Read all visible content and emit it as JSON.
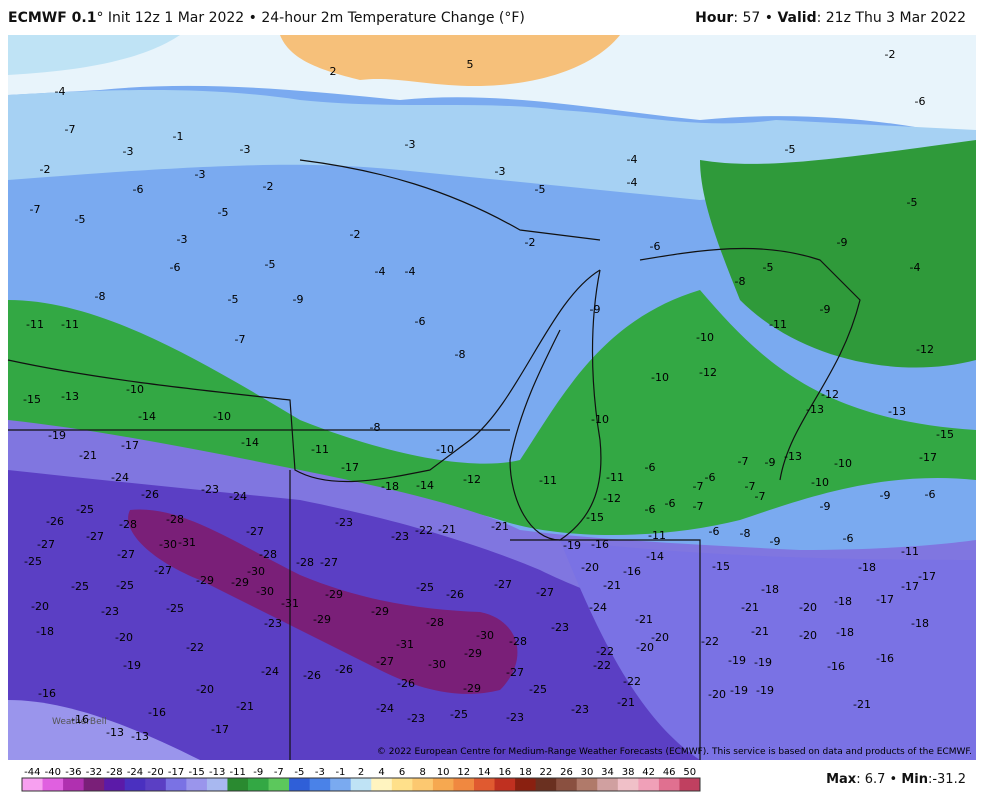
{
  "header": {
    "model": "ECMWF 0.1",
    "title": "° Init 12z 1 Mar 2022 • 24-hour 2m Temperature Change (°F)",
    "hour_label": "Hour",
    "hour_value": ": 57 • ",
    "valid_label": "Valid",
    "valid_value": ": 21z Thu 3 Mar 2022"
  },
  "footer": {
    "copyright": "© 2022 European Centre for Medium-Range Weather Forecasts (ECMWF). This service is based on data and products of the ECMWF.",
    "max_label": "Max",
    "max_value": ": 6.7 • ",
    "min_label": "Min",
    "min_value": ":-31.2",
    "watermark": "WeatherBell"
  },
  "colorbar": {
    "labels": [
      -44,
      -40,
      -36,
      -32,
      -28,
      -24,
      -20,
      -17,
      -15,
      -13,
      -11,
      -9,
      -7,
      -5,
      -3,
      -1,
      2,
      4,
      6,
      8,
      10,
      12,
      14,
      16,
      18,
      22,
      26,
      30,
      34,
      38,
      42,
      46,
      50
    ]
  },
  "map_values": [
    5,
    2,
    -2,
    -4,
    -6,
    -7,
    -1,
    -3,
    -3,
    -3,
    -3,
    -4,
    -5,
    -2,
    -3,
    -2,
    -6,
    -5,
    -4,
    -7,
    -5,
    -5,
    -5,
    -3,
    -2,
    -2,
    -6,
    -9,
    -6,
    -5,
    -4,
    -4,
    -5,
    -4,
    -8,
    -5,
    -9,
    -9,
    -8,
    -9,
    -11,
    -11,
    -7,
    -6,
    -10,
    -11,
    -12,
    -10,
    -8,
    -10,
    -12,
    -12,
    -15,
    -13,
    -14,
    -10,
    -8,
    -10,
    -13,
    -13,
    -19,
    -17,
    -14,
    -11,
    -10,
    -13,
    -15,
    -21,
    -24,
    -26,
    -23,
    -24,
    -17,
    -18,
    -14,
    -12,
    -11,
    -7,
    -25,
    -26,
    -28,
    -28,
    -27,
    -23,
    -23,
    -22,
    -21,
    -21,
    -27,
    -27,
    -30,
    -31,
    -27,
    -28,
    -27,
    -28,
    -27,
    -30,
    -29,
    -29,
    -25,
    -25,
    -25,
    -30,
    -31,
    -29,
    -29,
    -25,
    -26,
    -27,
    -27,
    -20,
    -21,
    -16,
    -24,
    -28,
    -30,
    -28,
    -31,
    -29,
    -29,
    -23,
    -27,
    -30,
    -26,
    -26,
    -26,
    -29,
    -27,
    -25,
    -24,
    -21,
    -20,
    -19,
    -18,
    -20,
    -23,
    -25,
    -20,
    -22,
    -16,
    -16,
    -16,
    -13,
    -13,
    -17,
    -24,
    -23,
    -25,
    -23,
    -23,
    -21,
    -23,
    -21,
    -20,
    -20,
    -22,
    -22,
    -22,
    -22,
    -19,
    -19,
    -20,
    -19,
    -19,
    -21,
    -21,
    -20,
    -18,
    -16,
    -16,
    -21,
    -15,
    -18,
    -20,
    -18,
    -17,
    -17,
    -18,
    -17,
    -18,
    -11,
    -14,
    -16,
    -19,
    -11,
    -6,
    -8,
    -9,
    -6,
    -6,
    -9,
    -9,
    -10,
    -7,
    -7,
    -6,
    -6,
    -15,
    -12,
    -11,
    -6,
    -6,
    -7,
    -9,
    -7,
    -17,
    -10
  ]
}
